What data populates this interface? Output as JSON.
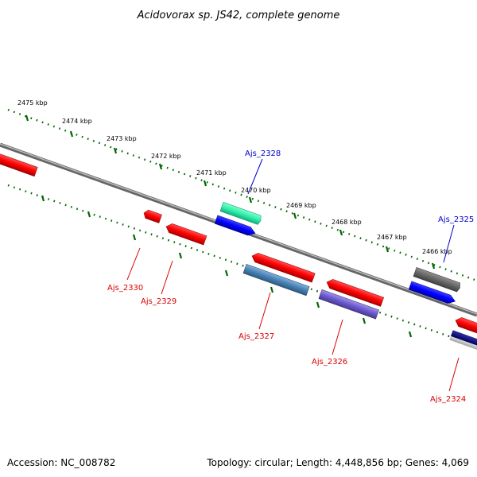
{
  "title": "Acidovorax sp. JS42, complete genome",
  "accession": "Accession: NC_008782",
  "summary": "Topology: circular; Length: 4,448,856 bp; Genes: 4,069",
  "ticks": [
    {
      "label": "2475 kbp"
    },
    {
      "label": "2474 kbp"
    },
    {
      "label": "2473 kbp"
    },
    {
      "label": "2472 kbp"
    },
    {
      "label": "2471 kbp"
    },
    {
      "label": "2470 kbp"
    },
    {
      "label": "2469 kbp"
    },
    {
      "label": "2468 kbp"
    },
    {
      "label": "2467 kbp"
    },
    {
      "label": "2466 kbp"
    }
  ],
  "labels": {
    "ajs2328": "Ajs_2328",
    "ajs2325": "Ajs_2325",
    "ajs2330": "Ajs_2330",
    "ajs2329": "Ajs_2329",
    "ajs2327": "Ajs_2327",
    "ajs2326": "Ajs_2326",
    "ajs2324": "Ajs_2324"
  },
  "colors": {
    "forward_label": "#0000cc",
    "reverse_label": "#dd0000",
    "tick": "#006600",
    "backbone": "#888888"
  }
}
